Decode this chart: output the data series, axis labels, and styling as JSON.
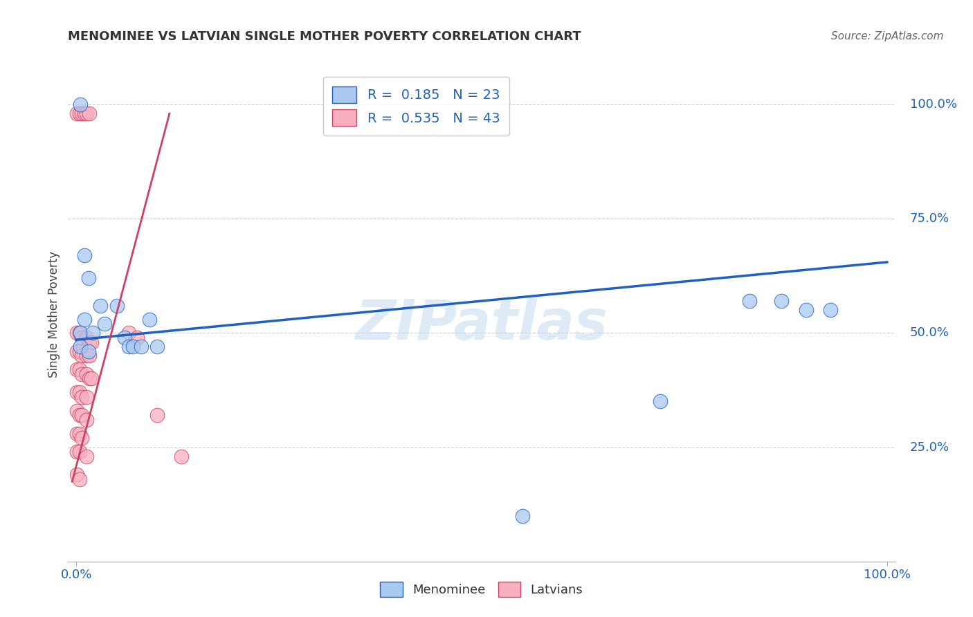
{
  "title": "MENOMINEE VS LATVIAN SINGLE MOTHER POVERTY CORRELATION CHART",
  "source": "Source: ZipAtlas.com",
  "ylabel": "Single Mother Poverty",
  "right_yticks": [
    "100.0%",
    "75.0%",
    "50.0%",
    "25.0%"
  ],
  "right_ytick_vals": [
    1.0,
    0.75,
    0.5,
    0.25
  ],
  "legend_blue_R": "0.185",
  "legend_blue_N": "23",
  "legend_pink_R": "0.535",
  "legend_pink_N": "43",
  "legend_label_blue": "Menominee",
  "legend_label_pink": "Latvians",
  "blue_color": "#A8C8F0",
  "pink_color": "#F8B0C0",
  "blue_line_color": "#2060C0",
  "pink_line_color": "#D04060",
  "watermark": "ZIPatlas",
  "blue_dots": [
    [
      0.005,
      1.0
    ],
    [
      0.01,
      0.67
    ],
    [
      0.015,
      0.62
    ],
    [
      0.01,
      0.53
    ],
    [
      0.005,
      0.5
    ],
    [
      0.02,
      0.5
    ],
    [
      0.005,
      0.47
    ],
    [
      0.015,
      0.46
    ],
    [
      0.03,
      0.56
    ],
    [
      0.035,
      0.52
    ],
    [
      0.05,
      0.56
    ],
    [
      0.06,
      0.49
    ],
    [
      0.065,
      0.47
    ],
    [
      0.07,
      0.47
    ],
    [
      0.08,
      0.47
    ],
    [
      0.09,
      0.53
    ],
    [
      0.1,
      0.47
    ],
    [
      0.55,
      0.1
    ],
    [
      0.72,
      0.35
    ],
    [
      0.83,
      0.57
    ],
    [
      0.87,
      0.57
    ],
    [
      0.9,
      0.55
    ],
    [
      0.93,
      0.55
    ]
  ],
  "pink_dots": [
    [
      0.001,
      0.98
    ],
    [
      0.004,
      0.98
    ],
    [
      0.007,
      0.98
    ],
    [
      0.01,
      0.98
    ],
    [
      0.013,
      0.98
    ],
    [
      0.016,
      0.98
    ],
    [
      0.001,
      0.5
    ],
    [
      0.004,
      0.5
    ],
    [
      0.007,
      0.49
    ],
    [
      0.013,
      0.49
    ],
    [
      0.016,
      0.48
    ],
    [
      0.019,
      0.48
    ],
    [
      0.001,
      0.46
    ],
    [
      0.004,
      0.46
    ],
    [
      0.007,
      0.45
    ],
    [
      0.013,
      0.45
    ],
    [
      0.016,
      0.45
    ],
    [
      0.001,
      0.42
    ],
    [
      0.004,
      0.42
    ],
    [
      0.007,
      0.41
    ],
    [
      0.013,
      0.41
    ],
    [
      0.016,
      0.4
    ],
    [
      0.019,
      0.4
    ],
    [
      0.001,
      0.37
    ],
    [
      0.004,
      0.37
    ],
    [
      0.007,
      0.36
    ],
    [
      0.013,
      0.36
    ],
    [
      0.001,
      0.33
    ],
    [
      0.004,
      0.32
    ],
    [
      0.007,
      0.32
    ],
    [
      0.013,
      0.31
    ],
    [
      0.001,
      0.28
    ],
    [
      0.004,
      0.28
    ],
    [
      0.007,
      0.27
    ],
    [
      0.001,
      0.24
    ],
    [
      0.004,
      0.24
    ],
    [
      0.013,
      0.23
    ],
    [
      0.001,
      0.19
    ],
    [
      0.004,
      0.18
    ],
    [
      0.065,
      0.5
    ],
    [
      0.075,
      0.49
    ],
    [
      0.1,
      0.32
    ],
    [
      0.13,
      0.23
    ]
  ],
  "blue_line_x": [
    0.0,
    1.0
  ],
  "blue_line_y": [
    0.485,
    0.655
  ],
  "pink_line_x": [
    -0.005,
    0.115
  ],
  "pink_line_y": [
    0.175,
    0.98
  ],
  "xlim": [
    -0.01,
    1.01
  ],
  "ylim": [
    0.0,
    1.08
  ],
  "background_color": "#FFFFFF",
  "grid_color": "#CCCCCC"
}
